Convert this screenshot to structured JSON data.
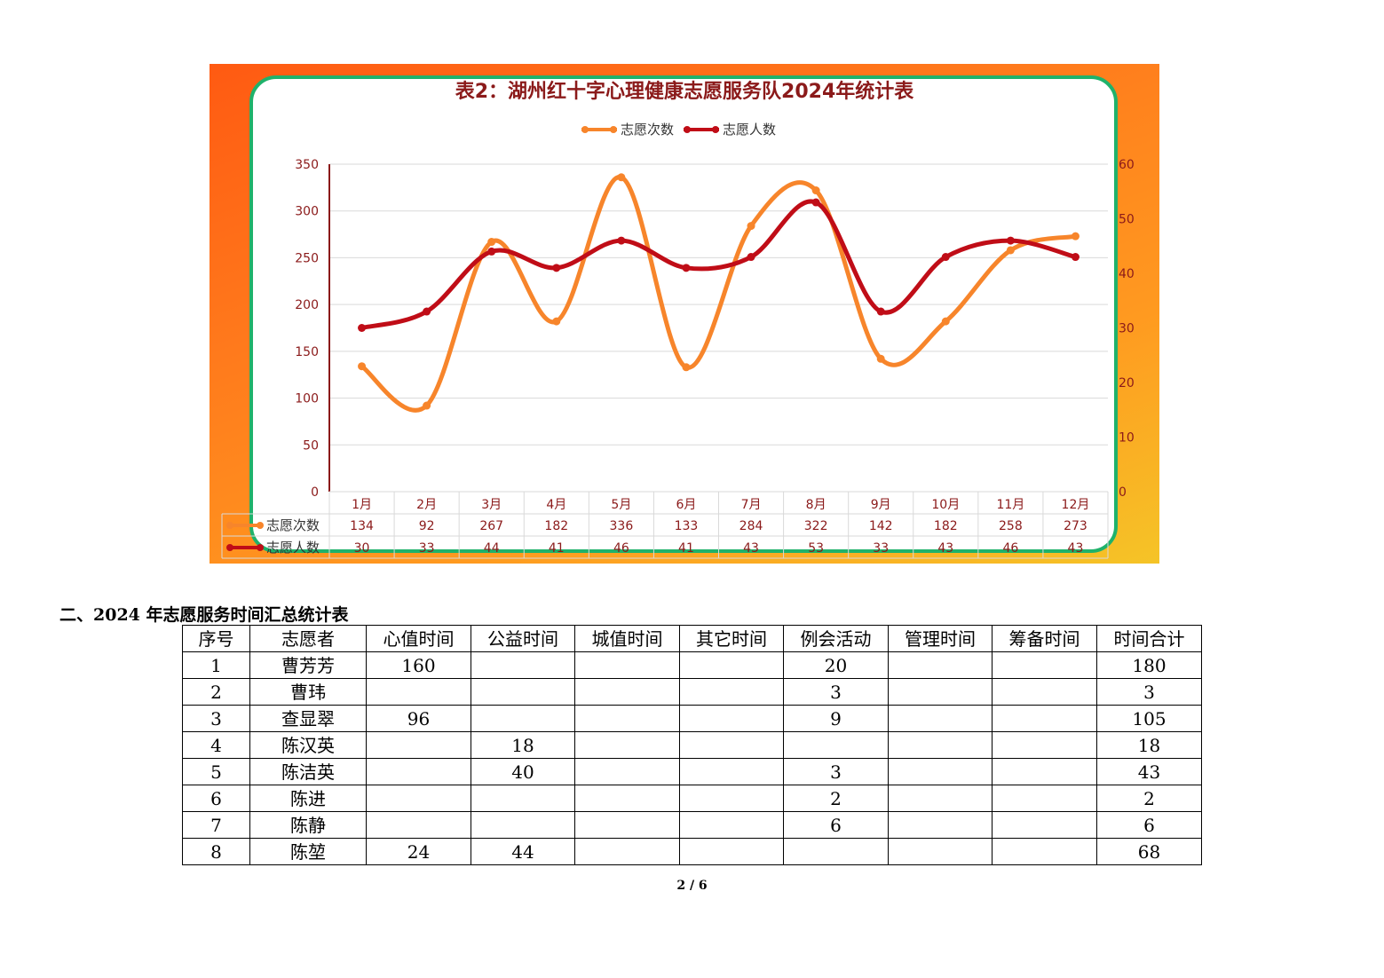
{
  "chart_data": {
    "type": "line",
    "title": "表2：湖州红十字心理健康志愿服务队2024年统计表",
    "categories": [
      "1月",
      "2月",
      "3月",
      "4月",
      "5月",
      "6月",
      "7月",
      "8月",
      "9月",
      "10月",
      "11月",
      "12月"
    ],
    "series": [
      {
        "name": "志愿次数",
        "axis": "left",
        "color": "#f7852b",
        "values": [
          134,
          92,
          267,
          182,
          336,
          133,
          284,
          322,
          142,
          182,
          258,
          273
        ]
      },
      {
        "name": "志愿人数",
        "axis": "right",
        "color": "#c00d17",
        "values": [
          30,
          33,
          44,
          41,
          46,
          41,
          43,
          53,
          33,
          43,
          46,
          43
        ]
      }
    ],
    "y_left": {
      "min": 0,
      "max": 350,
      "ticks": [
        "0",
        "50",
        "100",
        "150",
        "200",
        "250",
        "300",
        "350"
      ]
    },
    "y_right": {
      "min": 0,
      "max": 60,
      "ticks": [
        "0",
        "10",
        "20",
        "30",
        "40",
        "50",
        "60"
      ]
    },
    "legend_position": "top-center",
    "grid": true,
    "smooth": true,
    "data_table": true
  },
  "colors": {
    "frame_orange": "#ff6a16",
    "frame_border": "#1fb26b",
    "title": "#8b1a1a",
    "axis_text": "#8b1a1a"
  },
  "section_heading": "二、2024 年志愿服务时间汇总统计表",
  "table": {
    "headers": [
      "序号",
      "志愿者",
      "心值时间",
      "公益时间",
      "城值时间",
      "其它时间",
      "例会活动",
      "管理时间",
      "筹备时间",
      "时间合计"
    ],
    "rows": [
      [
        "1",
        "曹芳芳",
        "160",
        "",
        "",
        "",
        "20",
        "",
        "",
        "180"
      ],
      [
        "2",
        "曹玮",
        "",
        "",
        "",
        "",
        "3",
        "",
        "",
        "3"
      ],
      [
        "3",
        "查显翠",
        "96",
        "",
        "",
        "",
        "9",
        "",
        "",
        "105"
      ],
      [
        "4",
        "陈汉英",
        "",
        "18",
        "",
        "",
        "",
        "",
        "",
        "18"
      ],
      [
        "5",
        "陈洁英",
        "",
        "40",
        "",
        "",
        "3",
        "",
        "",
        "43"
      ],
      [
        "6",
        "陈进",
        "",
        "",
        "",
        "",
        "2",
        "",
        "",
        "2"
      ],
      [
        "7",
        "陈静",
        "",
        "",
        "",
        "",
        "6",
        "",
        "",
        "6"
      ],
      [
        "8",
        "陈堃",
        "24",
        "44",
        "",
        "",
        "",
        "",
        "",
        "68"
      ]
    ]
  },
  "page_number": "2 / 6"
}
